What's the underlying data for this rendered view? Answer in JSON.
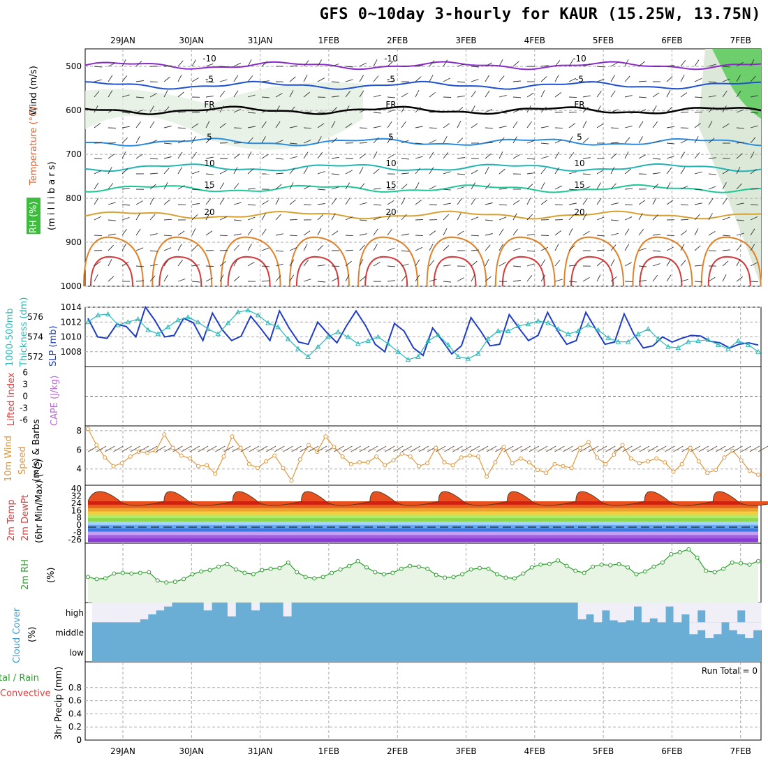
{
  "title": "GFS 0~10day 3-hourly for KAUR (15.25W, 13.75N)",
  "dates": [
    "29JAN",
    "30JAN",
    "31JAN",
    "1FEB",
    "2FEB",
    "3FEB",
    "4FEB",
    "5FEB",
    "6FEB",
    "7FEB"
  ],
  "panel_labels": {
    "profile": [
      "Wind (m/s)",
      "Temperature (°C)",
      "RH (%)",
      "(m i l l i b a r s)"
    ],
    "slp": [
      "1000-500mb",
      "Thickness (dm)",
      "SLP (mb)"
    ],
    "stability": [
      "Lifted Index",
      "CAPE (J/kg)"
    ],
    "wind10": [
      "10m Wind",
      "Speed",
      "(m/s) & Barbs"
    ],
    "temp": [
      "2m Temp",
      "2m DewPt",
      "(6hr Min/Max) (°C)"
    ],
    "rh2m": [
      "2m RH",
      "(%)"
    ],
    "cloud": [
      "Cloud Cover",
      "(%)"
    ],
    "precip": [
      "tal / Rain",
      "Convective",
      "3hr Precip (mm)"
    ],
    "run_total": "Run Total = 0",
    "cloud_levels": [
      "high",
      "middle",
      "low"
    ]
  },
  "colors": {
    "slp": "#1e3cc8",
    "thickness": "#2ab8b8",
    "wind": "#e0963a",
    "rh": "#2e9e2e",
    "cloud": "#6aaed6",
    "cloud_gap": "#f0eef6",
    "li_zero": "#e03030",
    "rh_fill": "#e8f4e4"
  },
  "chart_data": [
    {
      "type": "line",
      "panel": "vertical profile",
      "ylabel": "millibars",
      "ylim": [
        1000,
        460
      ],
      "yticks": [
        500,
        600,
        700,
        800,
        900,
        1000
      ],
      "isotherms": [
        {
          "label": "-10",
          "level": 498,
          "color": "#8a2ac8"
        },
        {
          "label": "-5",
          "level": 543,
          "color": "#1e50d0"
        },
        {
          "label": "FR",
          "level": 600,
          "color": "#000000"
        },
        {
          "label": "5",
          "level": 672,
          "color": "#2a8ce0"
        },
        {
          "label": "10",
          "level": 730,
          "color": "#20b4b4"
        },
        {
          "label": "15",
          "level": 778,
          "color": "#1ec896"
        },
        {
          "label": "20",
          "level": 838,
          "color": "#d8a030"
        }
      ]
    },
    {
      "type": "line",
      "panel": "slp/thickness",
      "series": [
        {
          "name": "SLP (mb)",
          "axis": [
            1006,
            1014
          ],
          "values": [
            1012.5,
            1010,
            1009.8,
            1011.7,
            1011.4,
            1010,
            1014,
            1012.2,
            1010,
            1010.2,
            1012.5,
            1011.9,
            1009.5,
            1013.2,
            1011,
            1009.5,
            1010.1,
            1012.8,
            1011.2,
            1009.5,
            1013.5,
            1011.2,
            1009.3,
            1009,
            1012,
            1010.5,
            1009.2,
            1011.5,
            1013.5,
            1011.5,
            1009,
            1008,
            1011.8,
            1010.8,
            1008.5,
            1007.5,
            1011.2,
            1009.5,
            1007.7,
            1008.8,
            1012.6,
            1010.8,
            1008.8,
            1009,
            1013,
            1011.2,
            1009.5,
            1010.2,
            1013.3,
            1010.9,
            1009,
            1009.5,
            1013.3,
            1011.1,
            1009,
            1009.3,
            1013.1,
            1010.4,
            1008.5,
            1008.8,
            1010,
            1009.3,
            1009.8,
            1010.2,
            1010.1,
            1009.4,
            1009.2,
            1008.5,
            1009,
            1009.2,
            1008.9
          ]
        },
        {
          "name": "1000-500mb Thickness (dm)",
          "axis": [
            571,
            577
          ],
          "values": [
            575.5,
            576.2,
            576.3,
            575.2,
            575.5,
            575.8,
            574.7,
            574.3,
            575,
            575.7,
            576,
            575.5,
            574.8,
            574.3,
            575.4,
            576.5,
            576.7,
            576.2,
            575.4,
            575,
            573.8,
            572.8,
            572,
            573,
            574,
            574.5,
            574,
            573.3,
            573.6,
            574,
            573.3,
            572.5,
            571.7,
            572,
            573.6,
            574.2,
            573.2,
            572,
            571.8,
            572.3,
            573.8,
            574.6,
            574.6,
            575.1,
            575.3,
            575.6,
            575.4,
            574.8,
            574.3,
            574.6,
            575.2,
            574.7,
            573.9,
            573.5,
            573.5,
            574.3,
            574.8,
            573.8,
            573,
            572.9,
            573.5,
            573.6,
            573.7,
            573.2,
            572.8,
            573.6,
            573.2,
            572.5
          ]
        }
      ]
    },
    {
      "type": "line",
      "panel": "stability",
      "yticks": [
        "6",
        "3",
        "0",
        "-3",
        "-6"
      ],
      "lifted_index_zero": 0
    },
    {
      "type": "line",
      "panel": "10m wind",
      "ylabel": "Speed (m/s)",
      "ylim": [
        2.3,
        8.5
      ],
      "yticks": [
        4,
        6,
        8
      ],
      "values": [
        8.2,
        6.5,
        5.2,
        4.3,
        4.6,
        5.3,
        5.8,
        5.7,
        5.9,
        7.6,
        6.2,
        5.4,
        5.1,
        4.3,
        4.4,
        3.5,
        5.3,
        7.4,
        6.2,
        4.5,
        4.1,
        4.8,
        5.4,
        4.1,
        2.8,
        5,
        6.5,
        5.8,
        7.4,
        6.3,
        5.3,
        4.5,
        4.7,
        4.7,
        5.3,
        4.4,
        4.9,
        5.6,
        5.3,
        4.3,
        4.6,
        6.2,
        4.7,
        4.4,
        5.2,
        5.4,
        5.3,
        3.2,
        4.7,
        6.3,
        4.6,
        5.1,
        4.7,
        3.9,
        3.6,
        4.5,
        4.3,
        4.1,
        6.2,
        6.8,
        5.2,
        4.5,
        5.5,
        6.5,
        5.1,
        4.6,
        4.8,
        5.1,
        4.7,
        3.7,
        4.5,
        6.2,
        4.8,
        3.6,
        3.9,
        5.2,
        5.9,
        4.9,
        3.8,
        3.4
      ]
    },
    {
      "type": "area",
      "panel": "2m temp",
      "ylabel": "°C",
      "yticks": [
        "40",
        "32",
        "24",
        "16",
        "8",
        "0",
        "-8",
        "-26"
      ],
      "peak_max_c": 38,
      "trough_min_c": 22
    },
    {
      "type": "line",
      "panel": "2m RH",
      "ylabel": "(%)",
      "values": [
        34,
        31,
        32,
        39,
        40,
        39,
        40,
        41,
        29,
        26,
        27,
        31,
        38,
        42,
        44,
        49,
        53,
        45,
        40,
        38,
        44,
        46,
        47,
        55,
        41,
        34,
        32,
        34,
        40,
        45,
        50,
        57,
        48,
        41,
        38,
        40,
        46,
        50,
        49,
        46,
        37,
        33,
        34,
        38,
        45,
        47,
        46,
        38,
        33,
        32,
        39,
        48,
        52,
        53,
        58,
        50,
        43,
        40,
        49,
        52,
        51,
        53,
        48,
        38,
        42,
        49,
        55,
        67,
        70,
        74,
        62,
        43,
        41,
        46,
        55,
        54,
        52,
        57
      ]
    },
    {
      "type": "bar",
      "panel": "cloud cover",
      "categories": [
        "high",
        "middle",
        "low"
      ],
      "high": [
        0,
        0,
        0,
        0,
        0,
        0,
        15,
        40,
        60,
        80,
        100,
        100,
        100,
        100,
        60,
        100,
        100,
        30,
        100,
        100,
        60,
        100,
        100,
        100,
        30,
        100,
        100,
        100,
        100,
        100,
        100,
        100,
        100,
        100,
        100,
        100,
        100,
        100,
        100,
        100,
        100,
        100,
        100,
        100,
        100,
        100,
        100,
        100,
        100,
        100,
        100,
        100,
        100,
        100,
        100,
        100,
        100,
        100,
        100,
        100,
        100,
        15,
        40,
        0,
        60,
        10,
        0,
        10,
        80,
        0,
        20,
        0,
        80,
        0,
        40,
        0,
        60,
        0,
        0,
        0,
        0,
        60,
        0,
        0
      ],
      "middle": [
        100,
        100,
        100,
        100,
        100,
        100,
        100,
        100,
        100,
        100,
        100,
        100,
        100,
        100,
        100,
        100,
        100,
        100,
        100,
        100,
        100,
        100,
        100,
        100,
        100,
        100,
        100,
        100,
        100,
        100,
        100,
        100,
        100,
        100,
        100,
        100,
        100,
        100,
        100,
        100,
        100,
        100,
        100,
        100,
        100,
        100,
        100,
        100,
        100,
        100,
        100,
        100,
        100,
        100,
        100,
        100,
        100,
        100,
        100,
        100,
        100,
        100,
        100,
        100,
        100,
        100,
        100,
        100,
        100,
        100,
        100,
        100,
        100,
        100,
        100,
        40,
        60,
        20,
        40,
        100,
        60,
        40,
        20,
        60
      ]
    },
    {
      "type": "bar",
      "panel": "3hr precip",
      "ylabel": "3hr Precip (mm)",
      "ylim": [
        0,
        1
      ],
      "yticks": [
        0,
        0.2,
        0.4,
        0.6,
        0.8
      ],
      "values": []
    }
  ]
}
